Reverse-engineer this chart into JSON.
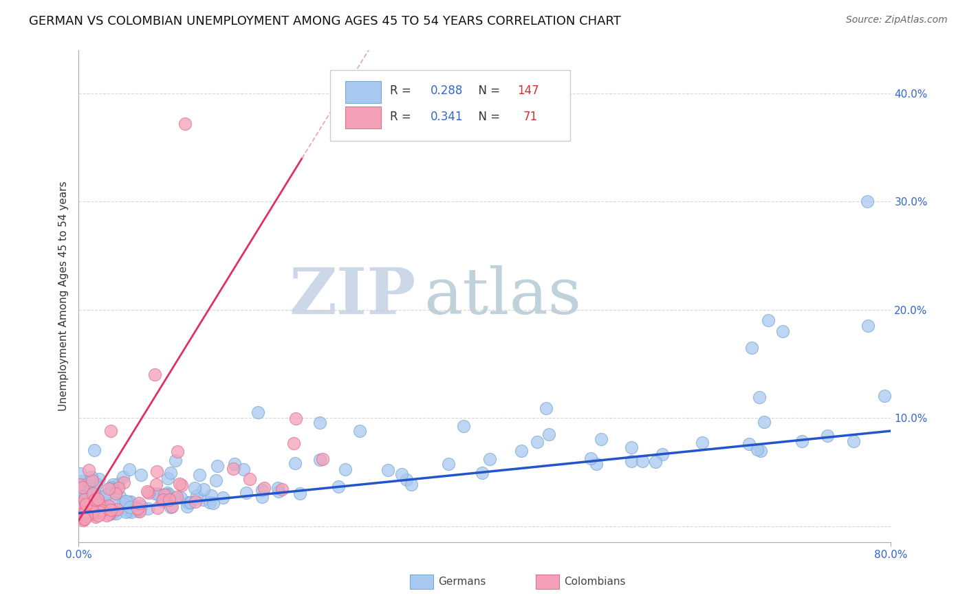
{
  "title": "GERMAN VS COLOMBIAN UNEMPLOYMENT AMONG AGES 45 TO 54 YEARS CORRELATION CHART",
  "source": "Source: ZipAtlas.com",
  "ylabel": "Unemployment Among Ages 45 to 54 years",
  "yticks": [
    0.0,
    0.1,
    0.2,
    0.3,
    0.4
  ],
  "ytick_labels": [
    "",
    "10.0%",
    "20.0%",
    "30.0%",
    "40.0%"
  ],
  "xlim": [
    0.0,
    0.8
  ],
  "ylim": [
    -0.015,
    0.44
  ],
  "german_R": 0.288,
  "german_N": 147,
  "colombian_R": 0.341,
  "colombian_N": 71,
  "german_color": "#a8c8f0",
  "german_edge_color": "#7aaad0",
  "colombian_color": "#f4a0b8",
  "colombian_edge_color": "#e07090",
  "german_trend_color": "#2255cc",
  "colombian_trend_color": "#e03060",
  "colombian_dash_color": "#e8a0b0",
  "background_color": "#ffffff",
  "title_fontsize": 13,
  "source_fontsize": 10,
  "watermark_zip_color": "#ccd8e8",
  "watermark_atlas_color": "#b8ccd8"
}
